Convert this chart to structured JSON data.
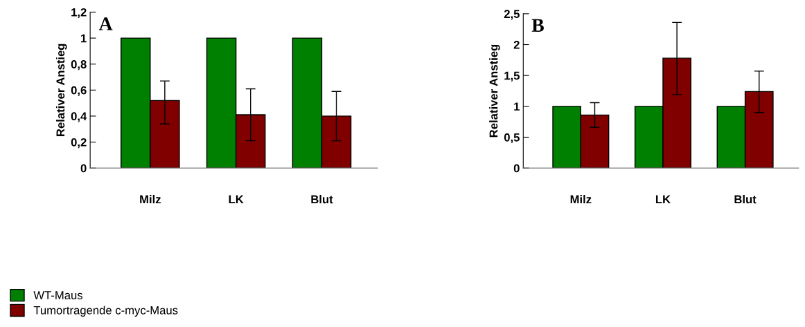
{
  "chart_data": [
    {
      "type": "bar",
      "annotations": [
        "A"
      ],
      "ylabel": "Relativer Anstieg",
      "categories": [
        "Milz",
        "LK",
        "Blut"
      ],
      "legend": "bottom",
      "grid": false,
      "ylim": [
        0,
        1.2
      ],
      "yticks": [
        0,
        {
          "value": 0.2,
          "label": "0,2"
        },
        {
          "value": 0.4,
          "label": "0,4"
        },
        {
          "value": 0.6,
          "label": "0,6"
        },
        {
          "value": 0.8,
          "label": "0,8"
        },
        1,
        {
          "value": 1.2,
          "label": "1,2"
        }
      ],
      "series": [
        {
          "name": "WT-Maus",
          "color": "#008000",
          "values": [
            1,
            1,
            1
          ]
        },
        {
          "name": "Tumortragende c-myc-Maus",
          "color": "#800000",
          "values": [
            0.52,
            0.41,
            0.4
          ],
          "errors": [
            [
              0.34,
              0.67
            ],
            [
              0.21,
              0.61
            ],
            [
              0.21,
              0.59
            ]
          ]
        }
      ]
    },
    {
      "type": "bar",
      "annotations": [
        "B"
      ],
      "ylabel": "Relativer Anstieg",
      "categories": [
        "Milz",
        "LK",
        "Blut"
      ],
      "grid": false,
      "ylim": [
        0,
        2.5
      ],
      "yticks": [
        0,
        {
          "value": 0.5,
          "label": "0,5"
        },
        1,
        {
          "value": 1.5,
          "label": "1,5"
        },
        2,
        {
          "value": 2.5,
          "label": "2,5"
        }
      ],
      "series": [
        {
          "color": "#008000",
          "values": [
            1,
            1,
            1
          ]
        },
        {
          "color": "#800000",
          "values": [
            0.86,
            1.78,
            1.24
          ],
          "errors": [
            [
              0.66,
              1.06
            ],
            [
              1.19,
              2.36
            ],
            [
              0.9,
              1.57
            ]
          ]
        }
      ]
    }
  ]
}
